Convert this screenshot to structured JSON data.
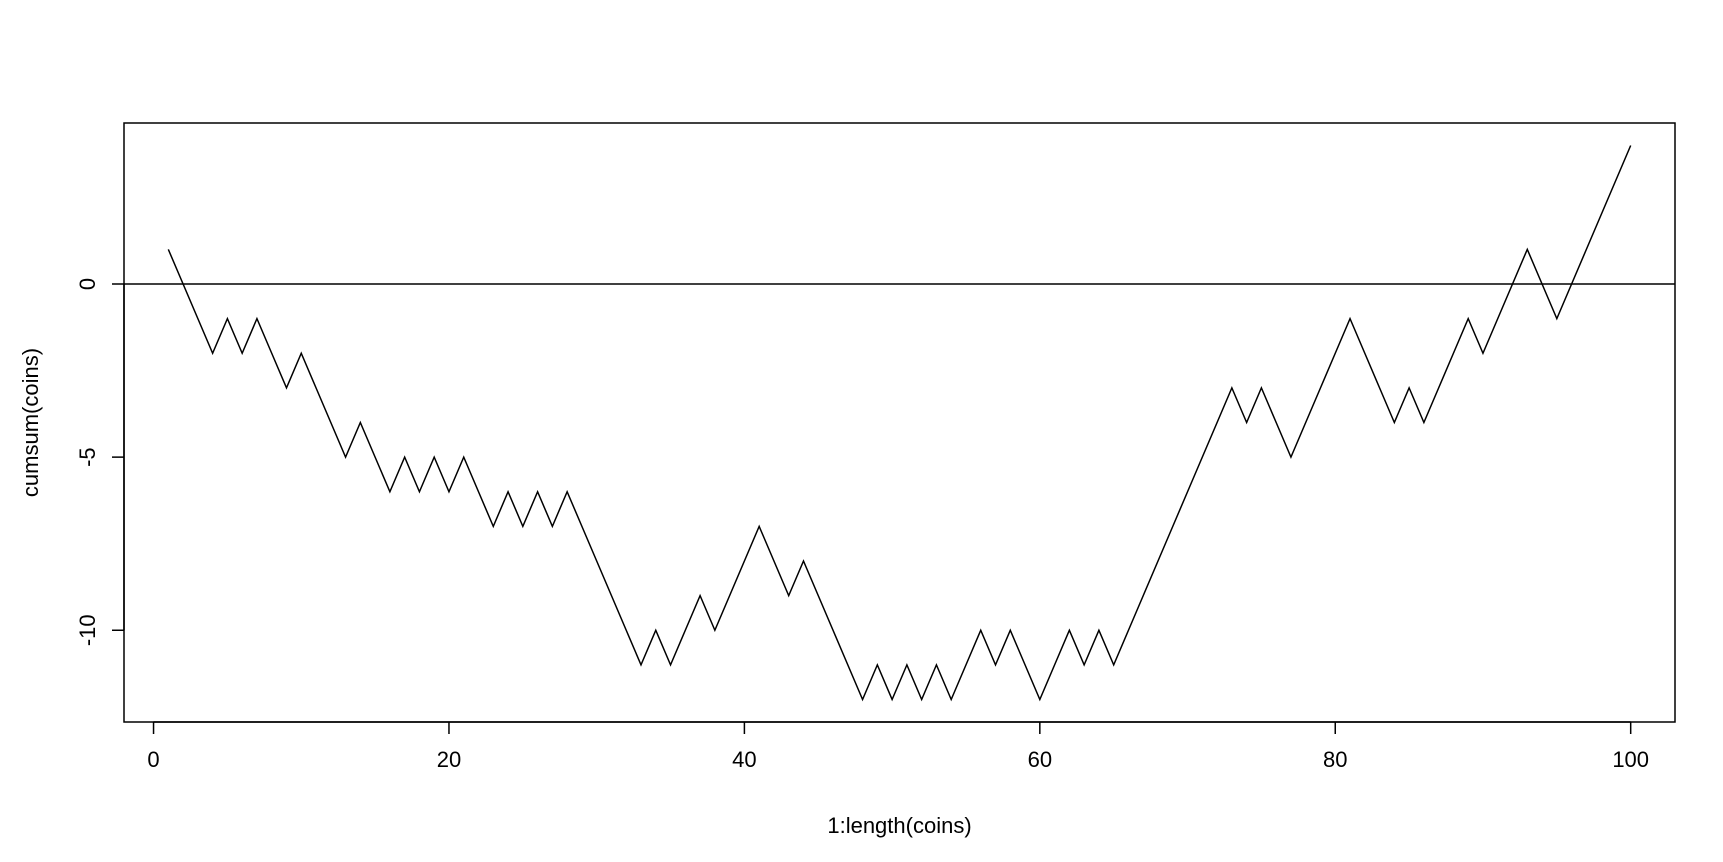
{
  "chart_data": {
    "type": "line",
    "xlabel": "1:length(coins)",
    "ylabel": "cumsum(coins)",
    "xlim": [
      -2,
      103
    ],
    "ylim": [
      -12.65,
      4.65
    ],
    "x_ticks": [
      0,
      20,
      40,
      60,
      80,
      100
    ],
    "x_tick_labels": [
      "0",
      "20",
      "40",
      "60",
      "80",
      "100"
    ],
    "y_ticks": [
      0,
      -5,
      -10
    ],
    "y_tick_labels": [
      "0",
      "-5",
      "-10"
    ],
    "reference_line": {
      "y": 0
    },
    "grid": false,
    "legend": "none",
    "colors": {
      "line": "#000000",
      "frame": "#000000",
      "background": "#ffffff"
    },
    "series": [
      {
        "x": [
          1,
          2,
          3,
          4,
          5,
          6,
          7,
          8,
          9,
          10,
          11,
          12,
          13,
          14,
          15,
          16,
          17,
          18,
          19,
          20,
          21,
          22,
          23,
          24,
          25,
          26,
          27,
          28,
          29,
          30,
          31,
          32,
          33,
          34,
          35,
          36,
          37,
          38,
          39,
          40,
          41,
          42,
          43,
          44,
          45,
          46,
          47,
          48,
          49,
          50,
          51,
          52,
          53,
          54,
          55,
          56,
          57,
          58,
          59,
          60,
          61,
          62,
          63,
          64,
          65,
          66,
          67,
          68,
          69,
          70,
          71,
          72,
          73,
          74,
          75,
          76,
          77,
          78,
          79,
          80,
          81,
          82,
          83,
          84,
          85,
          86,
          87,
          88,
          89,
          90,
          91,
          92,
          93,
          94,
          95,
          96,
          97,
          98,
          99,
          100
        ],
        "values": [
          1,
          0,
          -1,
          -2,
          -1,
          -2,
          -1,
          -2,
          -3,
          -2,
          -3,
          -4,
          -5,
          -4,
          -5,
          -6,
          -5,
          -6,
          -5,
          -6,
          -5,
          -6,
          -7,
          -6,
          -7,
          -6,
          -7,
          -6,
          -7,
          -8,
          -9,
          -10,
          -11,
          -10,
          -11,
          -10,
          -9,
          -10,
          -9,
          -8,
          -7,
          -8,
          -9,
          -8,
          -9,
          -10,
          -11,
          -12,
          -11,
          -12,
          -11,
          -12,
          -11,
          -12,
          -11,
          -10,
          -11,
          -10,
          -11,
          -12,
          -11,
          -10,
          -11,
          -10,
          -11,
          -10,
          -9,
          -8,
          -7,
          -6,
          -5,
          -4,
          -3,
          -4,
          -3,
          -4,
          -5,
          -4,
          -3,
          -2,
          -1,
          -2,
          -3,
          -4,
          -3,
          -4,
          -3,
          -2,
          -1,
          -2,
          -1,
          0,
          1,
          0,
          -1,
          0,
          1,
          2,
          3,
          4
        ]
      }
    ]
  }
}
